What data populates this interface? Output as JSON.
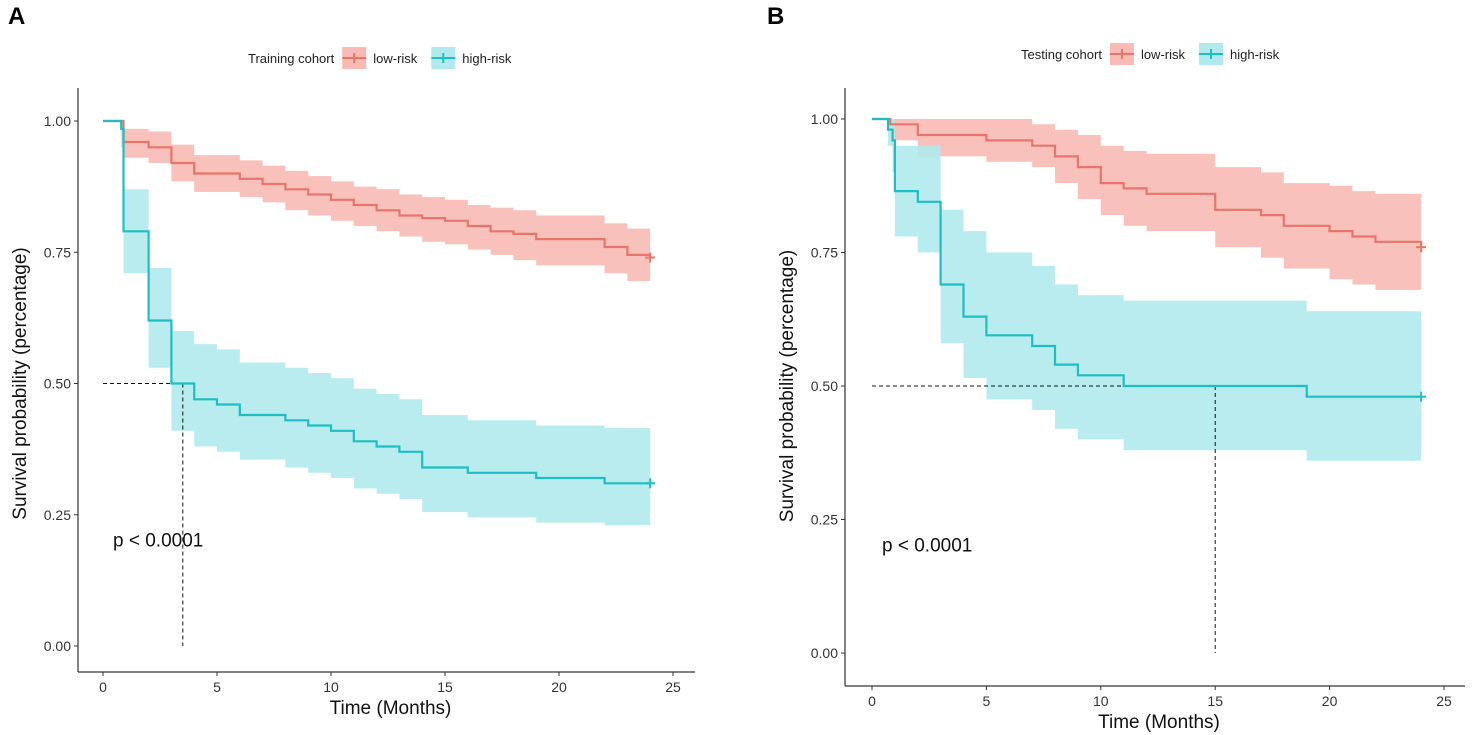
{
  "figure_labels": [
    "A",
    "B"
  ],
  "chart_data": [
    {
      "type": "line",
      "panel_label": "A",
      "legend_title": "Training cohort",
      "xlabel": "Time (Months)",
      "ylabel": "Survival probability (percentage)",
      "xlim": [
        0,
        25
      ],
      "ylim": [
        0,
        1
      ],
      "x_ticks": [
        0,
        5,
        10,
        15,
        20,
        25
      ],
      "y_ticks": [
        0,
        0.25,
        0.5,
        0.75,
        1.0
      ],
      "x_tick_labels": [
        "0",
        "5",
        "10",
        "15",
        "20",
        "25"
      ],
      "y_tick_labels": [
        "0.00",
        "0.25",
        "0.50",
        "0.75",
        "1.00"
      ],
      "annotation": "p < 0.0001",
      "median_line": {
        "y": 0.5,
        "x": 3.5
      },
      "series": [
        {
          "name": "low-risk",
          "color": "#E8756A",
          "band_color": "#F7BAB4",
          "steps": [
            [
              0,
              1.0
            ],
            [
              0.9,
              0.96
            ],
            [
              2,
              0.95
            ],
            [
              3,
              0.92
            ],
            [
              4,
              0.9
            ],
            [
              6,
              0.89
            ],
            [
              7,
              0.88
            ],
            [
              8,
              0.87
            ],
            [
              9,
              0.86
            ],
            [
              10,
              0.85
            ],
            [
              11,
              0.84
            ],
            [
              12,
              0.83
            ],
            [
              13,
              0.82
            ],
            [
              14,
              0.815
            ],
            [
              15,
              0.81
            ],
            [
              16,
              0.8
            ],
            [
              17,
              0.79
            ],
            [
              18,
              0.785
            ],
            [
              19,
              0.775
            ],
            [
              22,
              0.76
            ],
            [
              23,
              0.745
            ],
            [
              24,
              0.74
            ]
          ],
          "lower": [
            [
              0,
              1.0
            ],
            [
              0.9,
              0.93
            ],
            [
              2,
              0.92
            ],
            [
              3,
              0.885
            ],
            [
              4,
              0.865
            ],
            [
              6,
              0.855
            ],
            [
              7,
              0.845
            ],
            [
              8,
              0.83
            ],
            [
              9,
              0.82
            ],
            [
              10,
              0.81
            ],
            [
              11,
              0.8
            ],
            [
              12,
              0.79
            ],
            [
              13,
              0.78
            ],
            [
              14,
              0.77
            ],
            [
              15,
              0.765
            ],
            [
              16,
              0.755
            ],
            [
              17,
              0.745
            ],
            [
              18,
              0.735
            ],
            [
              19,
              0.725
            ],
            [
              22,
              0.71
            ],
            [
              23,
              0.695
            ],
            [
              24,
              0.69
            ]
          ],
          "upper": [
            [
              0,
              1.0
            ],
            [
              0.9,
              0.985
            ],
            [
              2,
              0.98
            ],
            [
              3,
              0.955
            ],
            [
              4,
              0.935
            ],
            [
              6,
              0.925
            ],
            [
              7,
              0.915
            ],
            [
              8,
              0.905
            ],
            [
              9,
              0.895
            ],
            [
              10,
              0.885
            ],
            [
              11,
              0.875
            ],
            [
              12,
              0.87
            ],
            [
              13,
              0.86
            ],
            [
              14,
              0.855
            ],
            [
              15,
              0.85
            ],
            [
              16,
              0.84
            ],
            [
              17,
              0.835
            ],
            [
              18,
              0.83
            ],
            [
              19,
              0.82
            ],
            [
              22,
              0.805
            ],
            [
              23,
              0.795
            ],
            [
              24,
              0.79
            ]
          ],
          "censor_x": 24
        },
        {
          "name": "high-risk",
          "color": "#1DBFC4",
          "band_color": "#B0EAEC",
          "steps": [
            [
              0,
              1.0
            ],
            [
              0.8,
              0.985
            ],
            [
              0.9,
              0.79
            ],
            [
              2,
              0.62
            ],
            [
              3,
              0.5
            ],
            [
              4,
              0.47
            ],
            [
              5,
              0.46
            ],
            [
              6,
              0.44
            ],
            [
              8,
              0.43
            ],
            [
              9,
              0.42
            ],
            [
              10,
              0.41
            ],
            [
              11,
              0.39
            ],
            [
              12,
              0.38
            ],
            [
              13,
              0.37
            ],
            [
              14,
              0.34
            ],
            [
              16,
              0.33
            ],
            [
              19,
              0.32
            ],
            [
              22,
              0.31
            ],
            [
              24,
              0.31
            ]
          ],
          "lower": [
            [
              0,
              1.0
            ],
            [
              0.8,
              0.95
            ],
            [
              0.9,
              0.71
            ],
            [
              2,
              0.53
            ],
            [
              3,
              0.41
            ],
            [
              4,
              0.38
            ],
            [
              5,
              0.37
            ],
            [
              6,
              0.355
            ],
            [
              8,
              0.34
            ],
            [
              9,
              0.33
            ],
            [
              10,
              0.32
            ],
            [
              11,
              0.3
            ],
            [
              12,
              0.29
            ],
            [
              13,
              0.28
            ],
            [
              14,
              0.255
            ],
            [
              16,
              0.245
            ],
            [
              19,
              0.235
            ],
            [
              22,
              0.23
            ],
            [
              24,
              0.23
            ]
          ],
          "upper": [
            [
              0,
              1.0
            ],
            [
              0.8,
              1.0
            ],
            [
              0.9,
              0.87
            ],
            [
              2,
              0.72
            ],
            [
              3,
              0.6
            ],
            [
              4,
              0.575
            ],
            [
              5,
              0.565
            ],
            [
              6,
              0.54
            ],
            [
              8,
              0.53
            ],
            [
              9,
              0.52
            ],
            [
              10,
              0.51
            ],
            [
              11,
              0.49
            ],
            [
              12,
              0.48
            ],
            [
              13,
              0.47
            ],
            [
              14,
              0.44
            ],
            [
              16,
              0.43
            ],
            [
              19,
              0.42
            ],
            [
              22,
              0.415
            ],
            [
              24,
              0.415
            ]
          ],
          "censor_x": 24
        }
      ]
    },
    {
      "type": "line",
      "panel_label": "B",
      "legend_title": "Testing cohort",
      "xlabel": "Time (Months)",
      "ylabel": "Survival probability (percentage)",
      "xlim": [
        0,
        25
      ],
      "ylim": [
        0,
        1
      ],
      "x_ticks": [
        0,
        5,
        10,
        15,
        20,
        25
      ],
      "y_ticks": [
        0,
        0.25,
        0.5,
        0.75,
        1.0
      ],
      "x_tick_labels": [
        "0",
        "5",
        "10",
        "15",
        "20",
        "25"
      ],
      "y_tick_labels": [
        "0.00",
        "0.25",
        "0.50",
        "0.75",
        "1.00"
      ],
      "annotation": "p < 0.0001",
      "median_line": {
        "y": 0.5,
        "x": 15
      },
      "series": [
        {
          "name": "low-risk",
          "color": "#E8756A",
          "band_color": "#F7BAB4",
          "steps": [
            [
              0,
              1.0
            ],
            [
              0.8,
              0.99
            ],
            [
              2,
              0.97
            ],
            [
              5,
              0.96
            ],
            [
              7,
              0.95
            ],
            [
              8,
              0.93
            ],
            [
              9,
              0.91
            ],
            [
              10,
              0.88
            ],
            [
              11,
              0.87
            ],
            [
              12,
              0.86
            ],
            [
              15,
              0.83
            ],
            [
              17,
              0.82
            ],
            [
              18,
              0.8
            ],
            [
              20,
              0.79
            ],
            [
              21,
              0.78
            ],
            [
              22,
              0.77
            ],
            [
              24,
              0.76
            ]
          ],
          "lower": [
            [
              0,
              1.0
            ],
            [
              0.8,
              0.96
            ],
            [
              2,
              0.93
            ],
            [
              5,
              0.92
            ],
            [
              7,
              0.91
            ],
            [
              8,
              0.88
            ],
            [
              9,
              0.85
            ],
            [
              10,
              0.82
            ],
            [
              11,
              0.8
            ],
            [
              12,
              0.79
            ],
            [
              15,
              0.76
            ],
            [
              17,
              0.74
            ],
            [
              18,
              0.72
            ],
            [
              20,
              0.7
            ],
            [
              21,
              0.69
            ],
            [
              22,
              0.68
            ],
            [
              24,
              0.68
            ]
          ],
          "upper": [
            [
              0,
              1.0
            ],
            [
              0.8,
              1.0
            ],
            [
              2,
              1.0
            ],
            [
              5,
              1.0
            ],
            [
              7,
              0.99
            ],
            [
              8,
              0.98
            ],
            [
              9,
              0.97
            ],
            [
              10,
              0.95
            ],
            [
              11,
              0.94
            ],
            [
              12,
              0.935
            ],
            [
              15,
              0.91
            ],
            [
              17,
              0.9
            ],
            [
              18,
              0.88
            ],
            [
              20,
              0.875
            ],
            [
              21,
              0.865
            ],
            [
              22,
              0.86
            ],
            [
              24,
              0.855
            ]
          ],
          "censor_x": 24
        },
        {
          "name": "high-risk",
          "color": "#1DBFC4",
          "band_color": "#B0EAEC",
          "steps": [
            [
              0,
              1.0
            ],
            [
              0.7,
              0.98
            ],
            [
              0.9,
              0.96
            ],
            [
              1,
              0.865
            ],
            [
              2,
              0.845
            ],
            [
              3,
              0.69
            ],
            [
              4,
              0.63
            ],
            [
              5,
              0.595
            ],
            [
              7,
              0.575
            ],
            [
              8,
              0.54
            ],
            [
              9,
              0.52
            ],
            [
              11,
              0.5
            ],
            [
              19,
              0.48
            ],
            [
              24,
              0.48
            ]
          ],
          "lower": [
            [
              0,
              1.0
            ],
            [
              0.7,
              0.95
            ],
            [
              0.9,
              0.9
            ],
            [
              1,
              0.78
            ],
            [
              2,
              0.75
            ],
            [
              3,
              0.58
            ],
            [
              4,
              0.515
            ],
            [
              5,
              0.475
            ],
            [
              7,
              0.455
            ],
            [
              8,
              0.42
            ],
            [
              9,
              0.4
            ],
            [
              11,
              0.38
            ],
            [
              19,
              0.36
            ],
            [
              24,
              0.36
            ]
          ],
          "upper": [
            [
              0,
              1.0
            ],
            [
              0.7,
              1.0
            ],
            [
              0.9,
              1.0
            ],
            [
              1,
              0.95
            ],
            [
              2,
              0.95
            ],
            [
              3,
              0.83
            ],
            [
              4,
              0.79
            ],
            [
              5,
              0.75
            ],
            [
              7,
              0.725
            ],
            [
              8,
              0.69
            ],
            [
              9,
              0.67
            ],
            [
              11,
              0.66
            ],
            [
              19,
              0.64
            ],
            [
              24,
              0.64
            ]
          ],
          "censor_x": 24
        }
      ]
    }
  ]
}
